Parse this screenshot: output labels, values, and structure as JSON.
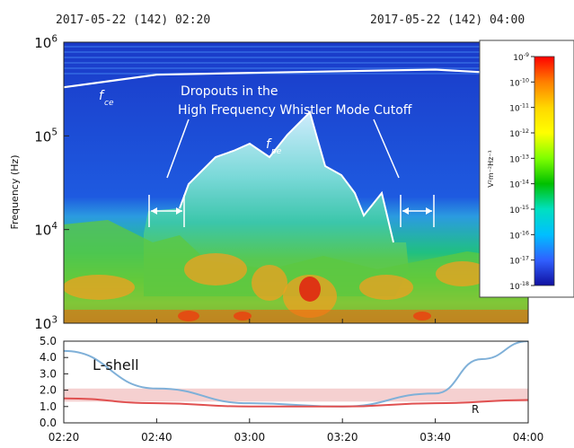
{
  "header": {
    "start_time": "2017-05-22 (142) 02:20",
    "end_time": "2017-05-22 (142) 04:00"
  },
  "chart_data": [
    {
      "type": "heatmap",
      "ylabel": "Frequency (Hz)",
      "yscale": "log",
      "ylim": [
        1000,
        1000000
      ],
      "y_ticks": [
        "10^3",
        "10^4",
        "10^5",
        "10^6"
      ],
      "x_ticks": [
        "02:20",
        "02:40",
        "03:00",
        "03:20",
        "03:40",
        "04:00"
      ],
      "annotations": {
        "fce": "ce",
        "fpe": "pe",
        "dropout_line1": "Dropouts in the",
        "dropout_line2": "High Frequency Whistler Mode Cutoff"
      },
      "fce_curve": {
        "x": [
          "02:20",
          "02:40",
          "03:00",
          "03:20",
          "03:40",
          "04:00"
        ],
        "y": [
          330000,
          450000,
          470000,
          490000,
          510000,
          450000
        ]
      },
      "colorbar": {
        "label": "V²m⁻²Hz⁻¹",
        "scale": "log",
        "range": [
          1e-18,
          1e-09
        ],
        "ticks": [
          "10^-9",
          "10^-10",
          "10^-11",
          "10^-12",
          "10^-13",
          "10^-14",
          "10^-15",
          "10^-16",
          "10^-17",
          "10^-18"
        ],
        "colors": [
          "#ff0000",
          "#ff7f00",
          "#ffd700",
          "#ffff00",
          "#7fff00",
          "#00c000",
          "#00e0c0",
          "#00bfff",
          "#3060ff",
          "#1010a0"
        ]
      }
    },
    {
      "type": "line",
      "ylim": [
        0,
        5
      ],
      "y_ticks": [
        "0.0",
        "1.0",
        "2.0",
        "3.0",
        "4.0",
        "5.0"
      ],
      "x_ticks": [
        "02:20",
        "02:40",
        "03:00",
        "03:20",
        "03:40",
        "04:00"
      ],
      "shaded_band": [
        1.3,
        2.1
      ],
      "series": [
        {
          "name": "L-shell",
          "color": "#7fb0d8",
          "x": [
            "02:20",
            "02:40",
            "03:00",
            "03:20",
            "03:40",
            "03:50",
            "04:00"
          ],
          "y": [
            4.4,
            2.1,
            1.2,
            1.0,
            1.8,
            3.9,
            5.0
          ]
        },
        {
          "name": "R",
          "color": "#e05050",
          "x": [
            "02:20",
            "02:40",
            "03:00",
            "03:20",
            "03:40",
            "04:00"
          ],
          "y": [
            1.5,
            1.2,
            1.0,
            1.0,
            1.2,
            1.4
          ]
        }
      ]
    }
  ]
}
